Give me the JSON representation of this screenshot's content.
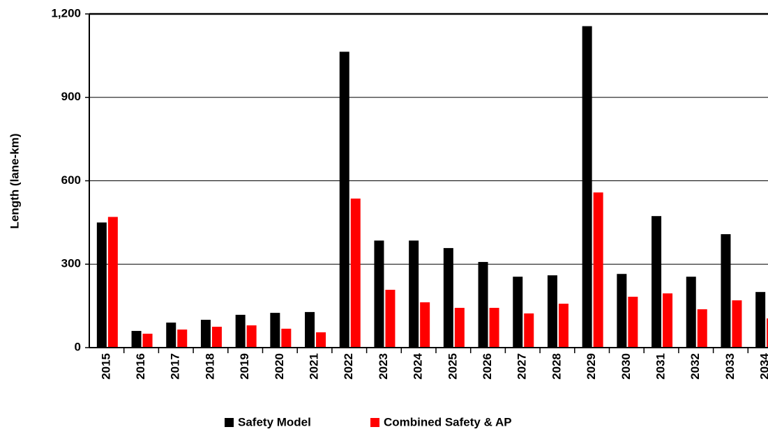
{
  "chart_data": {
    "type": "bar",
    "y_label": "Length (lane-km)",
    "categories": [
      "2015",
      "2016",
      "2017",
      "2018",
      "2019",
      "2020",
      "2021",
      "2022",
      "2023",
      "2024",
      "2025",
      "2026",
      "2027",
      "2028",
      "2029",
      "2030",
      "2031",
      "2032",
      "2033",
      "2034"
    ],
    "series": [
      {
        "name": "Safety Model",
        "color": "#000000",
        "values": [
          450,
          60,
          90,
          100,
          118,
          125,
          128,
          1064,
          385,
          385,
          358,
          308,
          255,
          260,
          1156,
          265,
          473,
          255,
          408,
          200
        ]
      },
      {
        "name": "Combined Safety & AP",
        "color": "#ff0000",
        "values": [
          470,
          50,
          65,
          75,
          80,
          68,
          55,
          536,
          208,
          163,
          143,
          143,
          123,
          158,
          558,
          183,
          195,
          138,
          170,
          105
        ]
      }
    ],
    "ylim": [
      0,
      1200
    ],
    "yticks": [
      0,
      300,
      600,
      900,
      {
        "value": 1200,
        "label": "1,200"
      }
    ],
    "grid": true,
    "legend": "bottom"
  }
}
